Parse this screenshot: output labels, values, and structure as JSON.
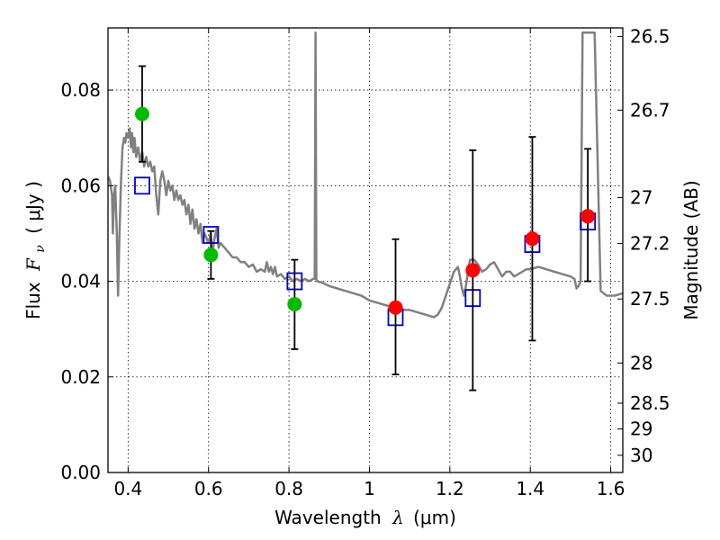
{
  "chart_data": {
    "type": "scatter",
    "xlabel": {
      "prefix": "Wavelength",
      "symbol": "λ",
      "unit": "(μm)"
    },
    "ylabel": {
      "prefix": "Flux",
      "symbol": "F",
      "subscript": "ν",
      "unit": "( μJy )"
    },
    "ylabel_right": "Magnitude (AB)",
    "xlim": [
      0.35,
      1.63
    ],
    "ylim": [
      0.0,
      0.093
    ],
    "grid": true,
    "x_ticks": [
      0.4,
      0.6,
      0.8,
      1.0,
      1.2,
      1.4,
      1.6
    ],
    "x_tick_labels": [
      "0.4",
      "0.6",
      "0.8",
      "1",
      "1.2",
      "1.4",
      "1.6"
    ],
    "y_ticks": [
      0.0,
      0.02,
      0.04,
      0.06,
      0.08
    ],
    "y_tick_labels": [
      "0.00",
      "0.02",
      "0.04",
      "0.06",
      "0.08"
    ],
    "right_axis_ticks": [
      {
        "mag": "26.5",
        "flux": 0.0912
      },
      {
        "mag": "26.7",
        "flux": 0.0758
      },
      {
        "mag": "27",
        "flux": 0.0575
      },
      {
        "mag": "27.2",
        "flux": 0.0479
      },
      {
        "mag": "27.5",
        "flux": 0.0363
      },
      {
        "mag": "28",
        "flux": 0.0229
      },
      {
        "mag": "28.5",
        "flux": 0.0145
      },
      {
        "mag": "29",
        "flux": 0.0091
      },
      {
        "mag": "30",
        "flux": 0.0036
      }
    ],
    "colors": {
      "template": "#808080",
      "green": "#00bb00",
      "red": "#ff0000",
      "model_box": "#0000cc",
      "errorbar": "#000000"
    },
    "template_spectrum": [
      [
        0.35,
        0.062
      ],
      [
        0.355,
        0.061
      ],
      [
        0.36,
        0.058
      ],
      [
        0.362,
        0.05
      ],
      [
        0.365,
        0.058
      ],
      [
        0.368,
        0.06
      ],
      [
        0.372,
        0.05
      ],
      [
        0.375,
        0.037
      ],
      [
        0.378,
        0.048
      ],
      [
        0.382,
        0.06
      ],
      [
        0.386,
        0.068
      ],
      [
        0.39,
        0.07
      ],
      [
        0.393,
        0.069
      ],
      [
        0.396,
        0.071
      ],
      [
        0.4,
        0.07
      ],
      [
        0.404,
        0.072
      ],
      [
        0.407,
        0.068
      ],
      [
        0.41,
        0.071
      ],
      [
        0.413,
        0.067
      ],
      [
        0.416,
        0.07
      ],
      [
        0.42,
        0.066
      ],
      [
        0.425,
        0.068
      ],
      [
        0.43,
        0.065
      ],
      [
        0.435,
        0.067
      ],
      [
        0.44,
        0.064
      ],
      [
        0.445,
        0.066
      ],
      [
        0.45,
        0.064
      ],
      [
        0.455,
        0.065
      ],
      [
        0.46,
        0.063
      ],
      [
        0.465,
        0.064
      ],
      [
        0.47,
        0.058
      ],
      [
        0.475,
        0.054
      ],
      [
        0.48,
        0.061
      ],
      [
        0.485,
        0.063
      ],
      [
        0.49,
        0.061
      ],
      [
        0.495,
        0.058
      ],
      [
        0.5,
        0.061
      ],
      [
        0.505,
        0.059
      ],
      [
        0.51,
        0.06
      ],
      [
        0.515,
        0.057
      ],
      [
        0.52,
        0.059
      ],
      [
        0.525,
        0.057
      ],
      [
        0.53,
        0.058
      ],
      [
        0.535,
        0.056
      ],
      [
        0.54,
        0.057
      ],
      [
        0.545,
        0.054
      ],
      [
        0.55,
        0.056
      ],
      [
        0.555,
        0.052
      ],
      [
        0.56,
        0.055
      ],
      [
        0.565,
        0.051
      ],
      [
        0.57,
        0.053
      ],
      [
        0.575,
        0.05
      ],
      [
        0.58,
        0.052
      ],
      [
        0.585,
        0.048
      ],
      [
        0.59,
        0.05
      ],
      [
        0.595,
        0.049
      ],
      [
        0.6,
        0.048
      ],
      [
        0.605,
        0.05
      ],
      [
        0.61,
        0.046
      ],
      [
        0.615,
        0.049
      ],
      [
        0.62,
        0.051
      ],
      [
        0.625,
        0.047
      ],
      [
        0.63,
        0.048
      ],
      [
        0.64,
        0.047
      ],
      [
        0.65,
        0.046
      ],
      [
        0.66,
        0.045
      ],
      [
        0.67,
        0.045
      ],
      [
        0.68,
        0.044
      ],
      [
        0.69,
        0.044
      ],
      [
        0.7,
        0.043
      ],
      [
        0.71,
        0.0435
      ],
      [
        0.72,
        0.042
      ],
      [
        0.73,
        0.0425
      ],
      [
        0.74,
        0.042
      ],
      [
        0.745,
        0.044
      ],
      [
        0.75,
        0.042
      ],
      [
        0.755,
        0.043
      ],
      [
        0.76,
        0.0415
      ],
      [
        0.765,
        0.043
      ],
      [
        0.77,
        0.041
      ],
      [
        0.78,
        0.0415
      ],
      [
        0.79,
        0.0405
      ],
      [
        0.8,
        0.041
      ],
      [
        0.81,
        0.04
      ],
      [
        0.82,
        0.0405
      ],
      [
        0.83,
        0.04
      ],
      [
        0.84,
        0.0405
      ],
      [
        0.85,
        0.04
      ],
      [
        0.86,
        0.0405
      ],
      [
        0.864,
        0.0405
      ],
      [
        0.866,
        0.092
      ],
      [
        0.868,
        0.0405
      ],
      [
        0.87,
        0.04
      ],
      [
        0.88,
        0.0398
      ],
      [
        0.9,
        0.039
      ],
      [
        0.92,
        0.0385
      ],
      [
        0.94,
        0.038
      ],
      [
        0.96,
        0.0375
      ],
      [
        0.98,
        0.037
      ],
      [
        1.0,
        0.036
      ],
      [
        1.02,
        0.0355
      ],
      [
        1.04,
        0.035
      ],
      [
        1.06,
        0.0345
      ],
      [
        1.08,
        0.034
      ],
      [
        1.1,
        0.034
      ],
      [
        1.12,
        0.0335
      ],
      [
        1.14,
        0.033
      ],
      [
        1.16,
        0.0325
      ],
      [
        1.17,
        0.033
      ],
      [
        1.18,
        0.0345
      ],
      [
        1.19,
        0.037
      ],
      [
        1.2,
        0.0395
      ],
      [
        1.21,
        0.042
      ],
      [
        1.22,
        0.043
      ],
      [
        1.225,
        0.041
      ],
      [
        1.23,
        0.0385
      ],
      [
        1.235,
        0.037
      ],
      [
        1.24,
        0.039
      ],
      [
        1.245,
        0.042
      ],
      [
        1.25,
        0.0445
      ],
      [
        1.26,
        0.0445
      ],
      [
        1.27,
        0.0435
      ],
      [
        1.28,
        0.042
      ],
      [
        1.29,
        0.0425
      ],
      [
        1.3,
        0.0435
      ],
      [
        1.31,
        0.044
      ],
      [
        1.32,
        0.0425
      ],
      [
        1.33,
        0.041
      ],
      [
        1.34,
        0.042
      ],
      [
        1.35,
        0.042
      ],
      [
        1.36,
        0.041
      ],
      [
        1.37,
        0.0415
      ],
      [
        1.38,
        0.042
      ],
      [
        1.39,
        0.0425
      ],
      [
        1.4,
        0.0425
      ],
      [
        1.42,
        0.043
      ],
      [
        1.44,
        0.0425
      ],
      [
        1.46,
        0.042
      ],
      [
        1.48,
        0.0415
      ],
      [
        1.5,
        0.041
      ],
      [
        1.51,
        0.0405
      ],
      [
        1.515,
        0.0385
      ],
      [
        1.52,
        0.039
      ],
      [
        1.525,
        0.04
      ],
      [
        1.53,
        0.092
      ],
      [
        1.55,
        0.092
      ],
      [
        1.56,
        0.092
      ],
      [
        1.575,
        0.038
      ],
      [
        1.59,
        0.037
      ],
      [
        1.61,
        0.037
      ],
      [
        1.63,
        0.0375
      ]
    ],
    "observed_green": [
      {
        "x": 0.435,
        "y": 0.075,
        "yerr_low": 0.065,
        "yerr_high": 0.085
      },
      {
        "x": 0.606,
        "y": 0.0455,
        "yerr_low": 0.0405,
        "yerr_high": 0.0505
      },
      {
        "x": 0.814,
        "y": 0.0352,
        "yerr_low": 0.0258,
        "yerr_high": 0.0445
      }
    ],
    "observed_red": [
      {
        "x": 1.065,
        "y": 0.0345,
        "yerr_low": 0.0205,
        "yerr_high": 0.0488
      },
      {
        "x": 1.257,
        "y": 0.0423,
        "yerr_low": 0.0172,
        "yerr_high": 0.0674
      },
      {
        "x": 1.405,
        "y": 0.0489,
        "yerr_low": 0.0276,
        "yerr_high": 0.0702
      },
      {
        "x": 1.543,
        "y": 0.0536,
        "yerr_low": 0.04,
        "yerr_high": 0.0677
      }
    ],
    "model_photometry": [
      {
        "x": 0.435,
        "y": 0.06
      },
      {
        "x": 0.606,
        "y": 0.0497
      },
      {
        "x": 0.814,
        "y": 0.04
      },
      {
        "x": 1.065,
        "y": 0.0325
      },
      {
        "x": 1.257,
        "y": 0.0365
      },
      {
        "x": 1.405,
        "y": 0.0478
      },
      {
        "x": 1.543,
        "y": 0.0525
      }
    ]
  }
}
